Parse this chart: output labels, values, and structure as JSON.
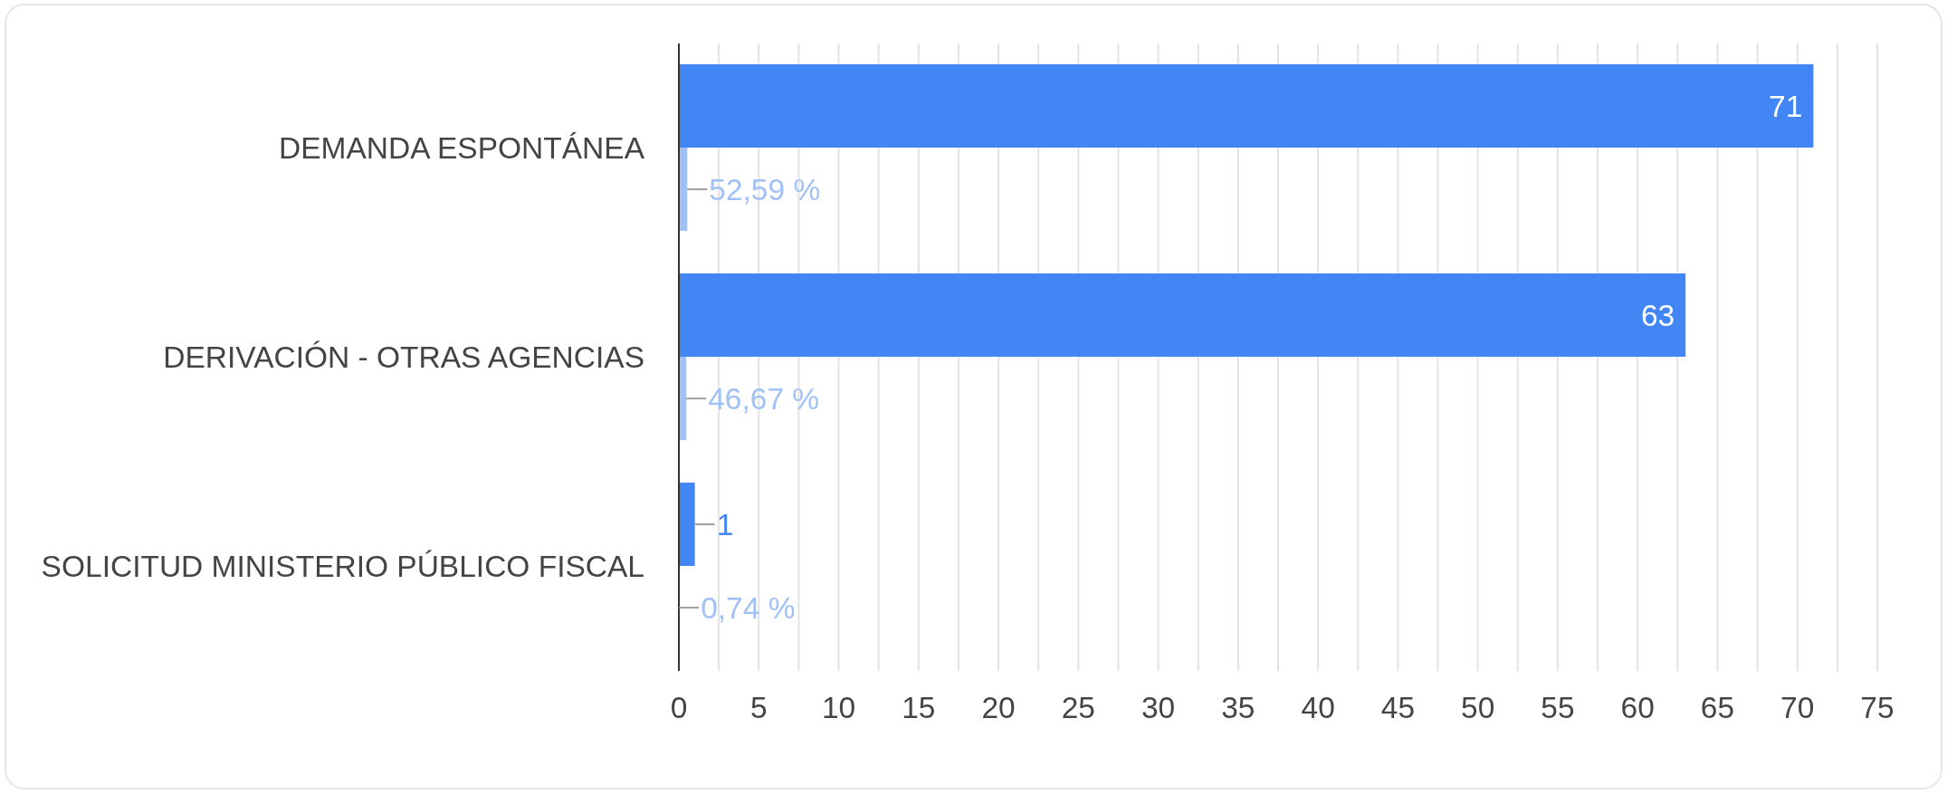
{
  "chart_data": {
    "type": "bar",
    "orientation": "horizontal",
    "categories": [
      "DEMANDA ESPONTÁNEA",
      "DERIVACIÓN - OTRAS AGENCIAS",
      "SOLICITUD MINISTERIO PÚBLICO FISCAL"
    ],
    "series": [
      {
        "color": "#4285f4",
        "values": [
          71,
          63,
          1
        ],
        "value_labels": [
          "71",
          "63",
          "1"
        ]
      },
      {
        "color": "#a0c1f8",
        "values": [
          0.5259,
          0.4667,
          0.0074
        ],
        "value_labels": [
          "52,59 %",
          "46,67 %",
          "0,74 %"
        ]
      }
    ],
    "xlim": [
      0,
      75
    ],
    "xticks": [
      0,
      {
        "value": 2.5,
        "label": null
      },
      5,
      {
        "value": 7.5,
        "label": null
      },
      10,
      {
        "value": 12.5,
        "label": null
      },
      15,
      {
        "value": 17.5,
        "label": null
      },
      20,
      {
        "value": 22.5,
        "label": null
      },
      25,
      {
        "value": 27.5,
        "label": null
      },
      30,
      {
        "value": 32.5,
        "label": null
      },
      35,
      {
        "value": 37.5,
        "label": null
      },
      40,
      {
        "value": 42.5,
        "label": null
      },
      45,
      {
        "value": 47.5,
        "label": null
      },
      50,
      {
        "value": 52.5,
        "label": null
      },
      55,
      {
        "value": 57.5,
        "label": null
      },
      60,
      {
        "value": 62.5,
        "label": null
      },
      65,
      {
        "value": 67.5,
        "label": null
      },
      70,
      {
        "value": 72.5,
        "label": null
      },
      75
    ],
    "grid": "x"
  }
}
